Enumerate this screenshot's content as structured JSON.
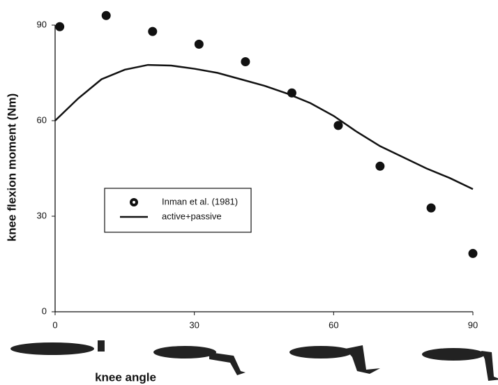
{
  "chart_data": {
    "type": "line",
    "x_label": "knee angle",
    "y_label": "knee flexion moment (Nm)",
    "xlim": [
      0,
      90
    ],
    "ylim": [
      0,
      90
    ],
    "xticks": [
      0,
      30,
      60,
      90
    ],
    "yticks": [
      0,
      30,
      60,
      90
    ],
    "series": [
      {
        "name": "Inman et al. (1981)",
        "type": "scatter",
        "color": "#111111",
        "x": [
          1,
          11,
          21,
          31,
          41,
          51,
          61,
          70,
          81,
          90
        ],
        "values": [
          89.5,
          93,
          88,
          84,
          78.5,
          68.7,
          58.5,
          45.7,
          32.6,
          18.3
        ]
      },
      {
        "name": "active+passive",
        "type": "line",
        "color": "#111111",
        "x": [
          0,
          5,
          10,
          15,
          20,
          25,
          30,
          35,
          40,
          45,
          50,
          55,
          60,
          65,
          70,
          75,
          80,
          85,
          90
        ],
        "values": [
          60,
          67,
          73,
          76,
          77.5,
          77.3,
          76.3,
          75,
          73,
          71,
          68.5,
          65.5,
          61.5,
          56.5,
          52,
          48.5,
          45,
          42,
          38.5
        ]
      }
    ]
  }
}
